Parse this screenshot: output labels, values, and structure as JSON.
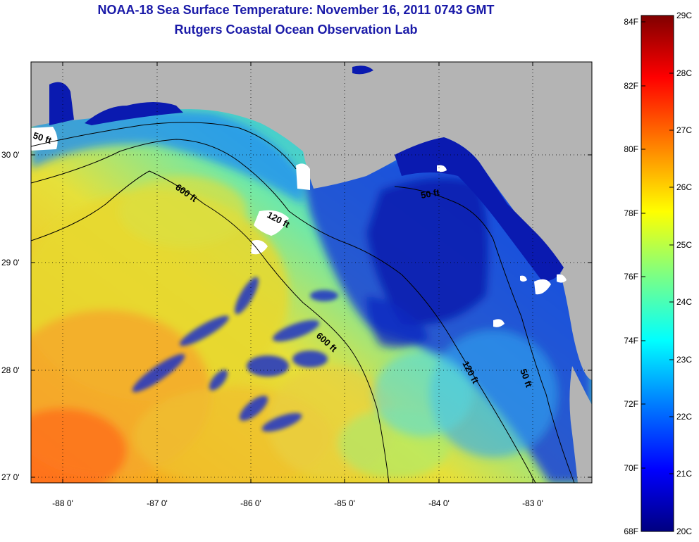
{
  "header": {
    "title_line1": "NOAA-18 Sea Surface Temperature:  November 16, 2011 0743 GMT",
    "title_line2": "Rutgers Coastal Ocean Observation Lab"
  },
  "map": {
    "type": "heatmap",
    "x_axis": {
      "ticks": [
        {
          "value": -88,
          "label": "-88 0'"
        },
        {
          "value": -87,
          "label": "-87 0'"
        },
        {
          "value": -86,
          "label": "-86 0'"
        },
        {
          "value": -85,
          "label": "-85 0'"
        },
        {
          "value": -84,
          "label": "-84 0'"
        },
        {
          "value": -83,
          "label": "-83 0'"
        }
      ]
    },
    "y_axis": {
      "ticks": [
        {
          "value": 30,
          "label": "30 0'"
        },
        {
          "value": 29,
          "label": "29 0'"
        },
        {
          "value": 28,
          "label": "28 0'"
        },
        {
          "value": 27,
          "label": "27 0'"
        }
      ]
    },
    "grid": "dotted",
    "land_color": "#b4b4b4",
    "cloud_color": "#ffffff",
    "contour_labels": [
      {
        "id": "c50-west",
        "text": "50 ft"
      },
      {
        "id": "c600-north",
        "text": "600 ft"
      },
      {
        "id": "c120-mid",
        "text": "120 ft"
      },
      {
        "id": "c50-east",
        "text": "50 ft"
      },
      {
        "id": "c600-south",
        "text": "600 ft"
      },
      {
        "id": "c120-east",
        "text": "120 ft"
      },
      {
        "id": "c50-southeast",
        "text": "50 ft"
      }
    ]
  },
  "colorbar": {
    "colors": [
      "#000080",
      "#0000ff",
      "#0080ff",
      "#00ffff",
      "#80ff80",
      "#ffff00",
      "#ff8000",
      "#ff0000",
      "#800000"
    ],
    "f_labels": [
      "84F",
      "82F",
      "80F",
      "78F",
      "76F",
      "74F",
      "72F",
      "70F",
      "68F"
    ],
    "c_labels": [
      "29C",
      "28C",
      "27C",
      "26C",
      "25C",
      "24C",
      "23C",
      "22C",
      "21C",
      "20C"
    ]
  }
}
